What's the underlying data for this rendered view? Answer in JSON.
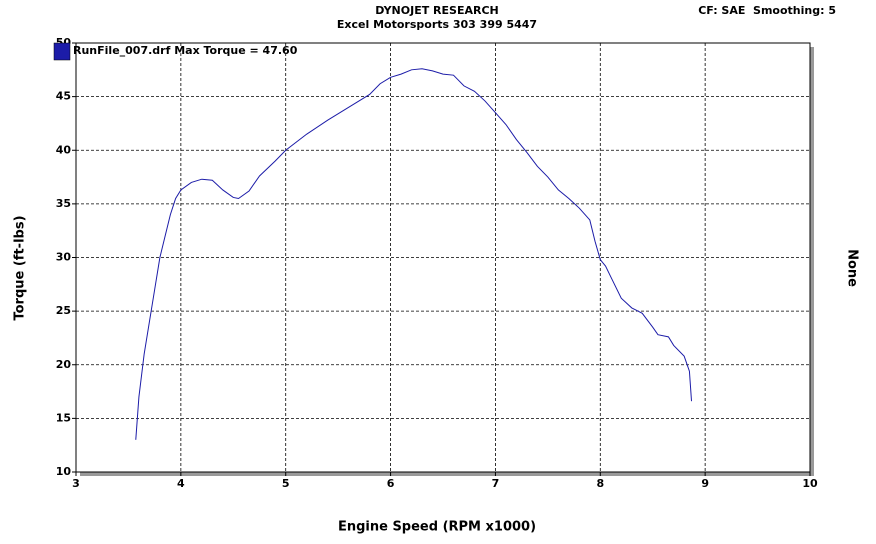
{
  "chart_data": {
    "type": "line",
    "title": "DYNOJET RESEARCH",
    "subtitle": "Excel Motorsports 303 399 5447",
    "annotation": "CF: SAE  Smoothing: 5",
    "x_label": "Engine Speed (RPM x1000)",
    "y_label": "Torque (ft-lbs)",
    "right_label": "None",
    "x": [
      3.57,
      3.6,
      3.65,
      3.7,
      3.75,
      3.8,
      3.85,
      3.9,
      3.95,
      4.0,
      4.1,
      4.2,
      4.3,
      4.4,
      4.5,
      4.55,
      4.65,
      4.75,
      4.9,
      5.0,
      5.2,
      5.4,
      5.6,
      5.8,
      5.9,
      6.0,
      6.1,
      6.2,
      6.3,
      6.4,
      6.5,
      6.6,
      6.7,
      6.8,
      6.9,
      7.0,
      7.1,
      7.2,
      7.3,
      7.4,
      7.5,
      7.6,
      7.7,
      7.8,
      7.9,
      7.95,
      8.0,
      8.05,
      8.1,
      8.2,
      8.3,
      8.4,
      8.5,
      8.55,
      8.65,
      8.7,
      8.8,
      8.85,
      8.87
    ],
    "series": [
      {
        "name": "RunFile_007.drf Max Torque = 47.60",
        "color": "#1c1ca8",
        "values": [
          13,
          17,
          21,
          24,
          27,
          30,
          32,
          34,
          35.5,
          36.3,
          37,
          37.3,
          37.2,
          36.3,
          35.6,
          35.5,
          36.2,
          37.6,
          39,
          40,
          41.5,
          42.8,
          44,
          45.2,
          46.2,
          46.8,
          47.1,
          47.5,
          47.6,
          47.4,
          47.1,
          47,
          46,
          45.5,
          44.6,
          43.5,
          42.4,
          41,
          39.8,
          38.5,
          37.5,
          36.3,
          35.5,
          34.6,
          33.5,
          31.5,
          29.8,
          29.2,
          28.2,
          26.2,
          25.3,
          24.8,
          23.5,
          22.8,
          22.6,
          21.8,
          20.8,
          19.4,
          16.6
        ]
      }
    ],
    "xlim": [
      3,
      10
    ],
    "xticks": [
      3,
      4,
      5,
      6,
      7,
      8,
      9,
      10
    ],
    "ylim": [
      10,
      50
    ],
    "yticks": [
      10,
      15,
      20,
      25,
      30,
      35,
      40,
      45,
      50
    ],
    "grid": true
  }
}
